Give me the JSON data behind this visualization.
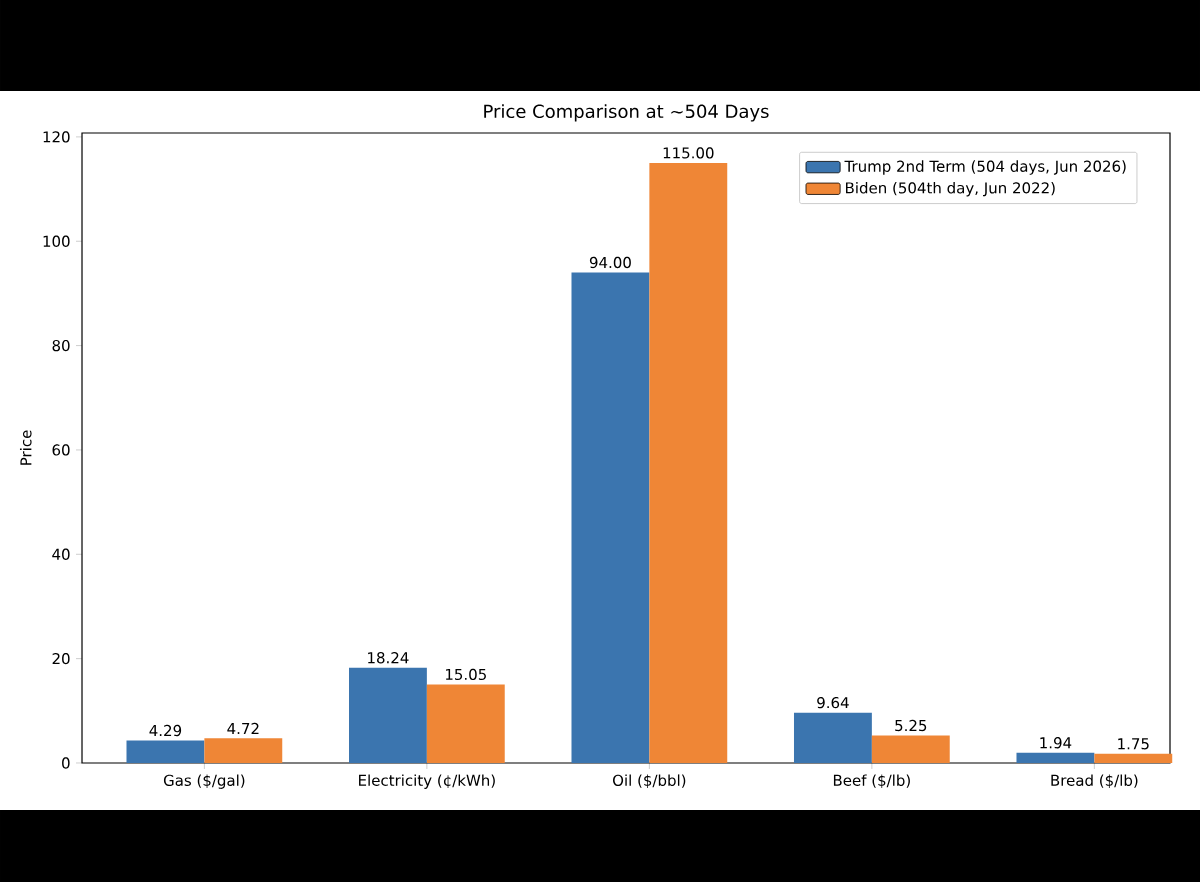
{
  "chart_data": {
    "type": "bar",
    "title": "Price Comparison at ~504 Days",
    "ylabel": "Price",
    "categories": [
      "Gas ($/gal)",
      "Electricity (¢/kWh)",
      "Oil ($/bbl)",
      "Beef ($/lb)",
      "Bread ($/lb)"
    ],
    "series": [
      {
        "name": "Trump 2nd Term (504 days, Jun 2026)",
        "color": "#3b75af",
        "values": [
          4.29,
          18.24,
          94.0,
          9.64,
          1.94
        ],
        "value_labels": [
          "4.29",
          "18.24",
          "94.00",
          "9.64",
          "1.94"
        ]
      },
      {
        "name": "Biden (504th day, Jun 2022)",
        "color": "#ef8636",
        "values": [
          4.72,
          15.05,
          115.0,
          5.25,
          1.75
        ],
        "value_labels": [
          "4.72",
          "15.05",
          "115.00",
          "5.25",
          "1.75"
        ]
      }
    ],
    "ylim": [
      0,
      120.75
    ],
    "yticks": [
      0,
      20,
      40,
      60,
      80,
      100,
      120
    ],
    "legend": "top right"
  }
}
